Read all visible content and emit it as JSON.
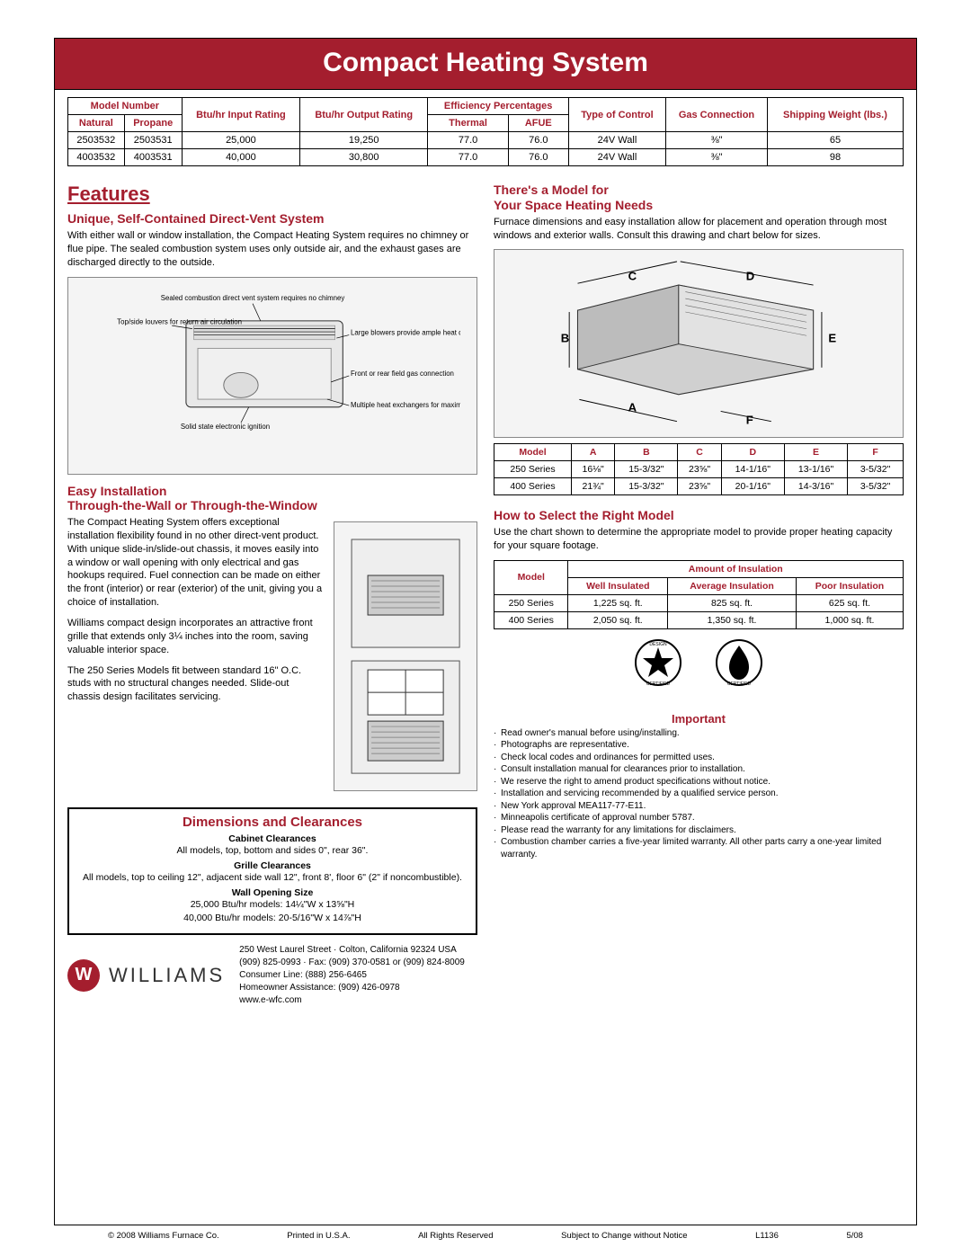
{
  "title": "Compact Heating System",
  "spec_table": {
    "headers": {
      "model_number": "Model Number",
      "natural": "Natural",
      "propane": "Propane",
      "input": "Btu/hr Input Rating",
      "output": "Btu/hr Output Rating",
      "eff": "Efficiency Percentages",
      "thermal": "Thermal",
      "afue": "AFUE",
      "control": "Type of Control",
      "gas": "Gas Connection",
      "weight": "Shipping Weight (lbs.)"
    },
    "rows": [
      {
        "natural": "2503532",
        "propane": "2503531",
        "input": "25,000",
        "output": "19,250",
        "thermal": "77.0",
        "afue": "76.0",
        "control": "24V Wall",
        "gas": "⅜\"",
        "weight": "65"
      },
      {
        "natural": "4003532",
        "propane": "4003531",
        "input": "40,000",
        "output": "30,800",
        "thermal": "77.0",
        "afue": "76.0",
        "control": "24V Wall",
        "gas": "⅜\"",
        "weight": "98"
      }
    ]
  },
  "features_heading": "Features",
  "unique": {
    "heading": "Unique, Self-Contained Direct-Vent System",
    "body": "With either wall or window installation, the Compact Heating System requires no chimney or flue pipe. The sealed combustion system uses only outside air, and the exhaust gases are discharged directly to the outside."
  },
  "annotations": {
    "sealed": "Sealed combustion direct vent system requires no chimney",
    "louvers": "Top/side louvers for return air circulation",
    "blowers": "Large blowers provide ample heat distribution",
    "gasconn": "Front or rear field gas connection",
    "exchangers": "Multiple heat exchangers for maximum heating efficiency",
    "ignition": "Solid state electronic ignition"
  },
  "easy": {
    "heading": "Easy Installation\nThrough-the-Wall or Through-the-Window",
    "p1": "The Compact Heating System offers exceptional installation flexibility found in no other direct-vent product. With unique slide-in/slide-out chassis, it moves easily into a window or wall opening with only electrical and gas hookups required. Fuel connection can be made on either the front (interior) or rear (exterior) of the unit, giving you a choice of installation.",
    "p2": "Williams compact design incorporates an attractive front grille that extends only 3¼ inches into the room, saving valuable interior space.",
    "p3": "The 250 Series Models fit between standard 16\" O.C. studs with no structural changes needed. Slide-out chassis design facilitates servicing."
  },
  "model_heading": "There's a Model for\nYour Space Heating Needs",
  "model_body": "Furnace dimensions and easy installation allow for placement and operation through most windows and exterior walls. Consult this drawing and chart below for sizes.",
  "dim_labels": {
    "A": "A",
    "B": "B",
    "C": "C",
    "D": "D",
    "E": "E",
    "F": "F"
  },
  "dims_table": {
    "headers": {
      "model": "Model",
      "A": "A",
      "B": "B",
      "C": "C",
      "D": "D",
      "E": "E",
      "F": "F"
    },
    "rows": [
      {
        "model": "250 Series",
        "A": "16⅛\"",
        "B": "15-3/32\"",
        "C": "23⅝\"",
        "D": "14-1/16\"",
        "E": "13-1/16\"",
        "F": "3-5/32\""
      },
      {
        "model": "400 Series",
        "A": "21¾\"",
        "B": "15-3/32\"",
        "C": "23⅝\"",
        "D": "20-1/16\"",
        "E": "14-3/16\"",
        "F": "3-5/32\""
      }
    ]
  },
  "select_heading": "How to Select the Right Model",
  "select_body": "Use the chart shown to determine the appropriate model to provide proper heating capacity for your square footage.",
  "insul_table": {
    "insul_head": "Amount of Insulation",
    "headers": {
      "model": "Model",
      "well": "Well Insulated",
      "avg": "Average Insulation",
      "poor": "Poor Insulation"
    },
    "rows": [
      {
        "model": "250 Series",
        "well": "1,225 sq. ft.",
        "avg": "825 sq. ft.",
        "poor": "625 sq. ft."
      },
      {
        "model": "400 Series",
        "well": "2,050 sq. ft.",
        "avg": "1,350 sq. ft.",
        "poor": "1,000 sq. ft."
      }
    ]
  },
  "dimbox": {
    "heading": "Dimensions and Clearances",
    "cab_head": "Cabinet Clearances",
    "cab": "All models, top, bottom and sides 0\", rear 36\".",
    "grille_head": "Grille Clearances",
    "grille": "All models, top to ceiling 12\", adjacent side wall 12\", front 8', floor 6\" (2\" if noncombustible).",
    "wall_head": "Wall Opening Size",
    "wall1": "25,000 Btu/hr models: 14¼\"W x 13⅝\"H",
    "wall2": "40,000 Btu/hr models: 20-5/16\"W x 14⅞\"H"
  },
  "important": {
    "heading": "Important",
    "items": [
      "Read owner's manual before using/installing.",
      "Photographs are representative.",
      "Check local codes and ordinances for permitted uses.",
      "Consult installation manual for clearances prior to installation.",
      "We reserve the right to amend product specifications without notice.",
      "Installation and servicing recommended by a qualified service person.",
      "New York approval MEA117-77-E11.",
      "Minneapolis certificate of approval number 5787.",
      "Please read the warranty for any limitations for disclaimers.",
      "Combustion chamber carries a five-year limited warranty. All other parts carry a one-year limited warranty."
    ]
  },
  "brand": "WILLIAMS",
  "address": {
    "line1": "250 West Laurel Street · Colton, California 92324 USA",
    "line2": "(909) 825-0993 · Fax: (909) 370-0581 or (909) 824-8009",
    "line3": "Consumer Line: (888) 256-6465",
    "line4": "Homeowner Assistance: (909) 426-0978",
    "line5": "www.e-wfc.com"
  },
  "footer": {
    "copyright": "© 2008 Williams Furnace Co.",
    "printed": "Printed in U.S.A.",
    "rights": "All Rights Reserved",
    "change": "Subject to Change without Notice",
    "code": "L1136",
    "date": "5/08"
  },
  "colors": {
    "accent": "#a41e2e",
    "border": "#000000"
  }
}
